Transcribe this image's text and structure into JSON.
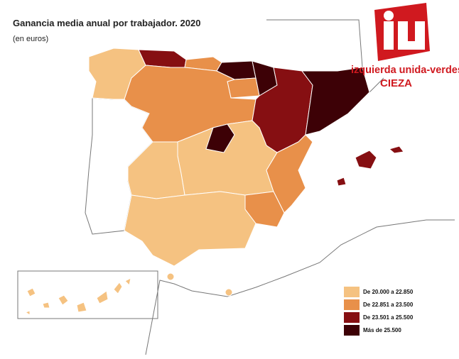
{
  "title": "Ganancia media anual por trabajador. 2020",
  "subtitle": "(en euros)",
  "logo": {
    "line1": "izquierda unida-verdes",
    "line2": "CIEZA"
  },
  "legend": [
    {
      "label": "De 20.000 a 22.850",
      "color": "#f5c281"
    },
    {
      "label": "De 22.851 a 23.500",
      "color": "#e8904a"
    },
    {
      "label": "De 23.501 a 25.500",
      "color": "#860f12"
    },
    {
      "label": "Más de 25.500",
      "color": "#3d0106"
    }
  ]
}
